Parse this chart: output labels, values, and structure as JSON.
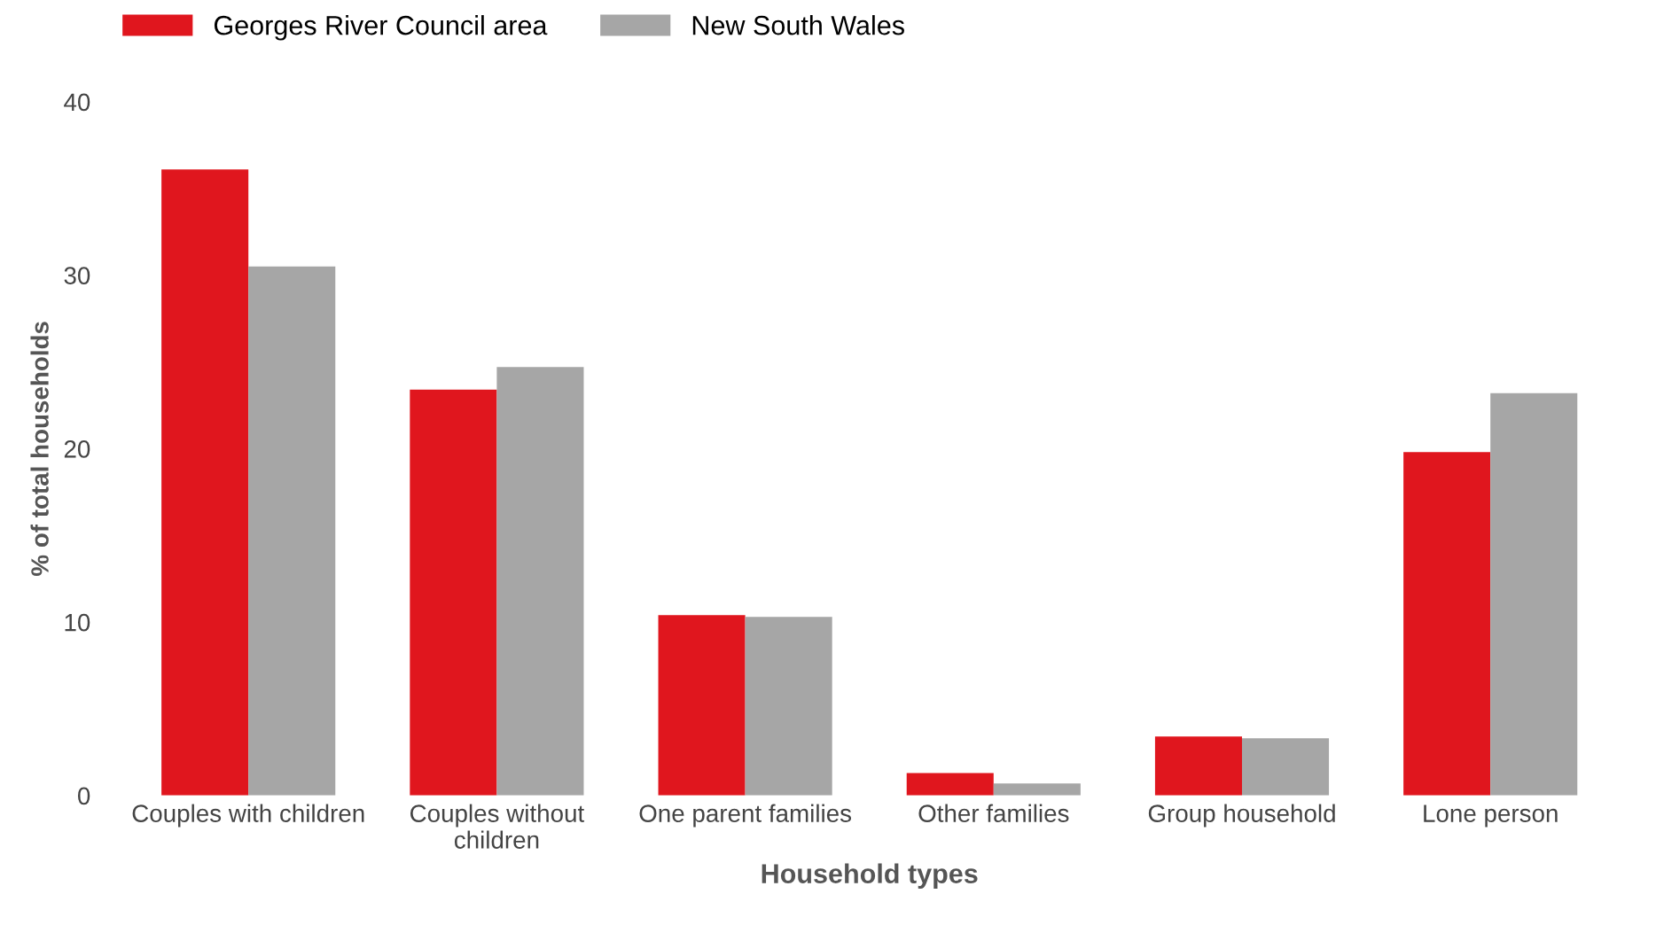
{
  "chart_data": {
    "type": "bar",
    "xlabel": "Household types",
    "ylabel": "% of total households",
    "categories": [
      "Couples with children",
      "Couples without\nchildren",
      "One parent families",
      "Other families",
      "Group household",
      "Lone person"
    ],
    "series": [
      {
        "name": "Georges River Council area",
        "color": "#e0161e",
        "values": [
          36.1,
          23.4,
          10.4,
          1.3,
          3.4,
          19.8
        ]
      },
      {
        "name": "New South Wales",
        "color": "#a6a6a6",
        "values": [
          30.5,
          24.7,
          10.3,
          0.7,
          3.3,
          23.2
        ]
      }
    ],
    "ylim": [
      0,
      40
    ],
    "yticks": [
      0,
      10,
      20,
      30,
      40
    ],
    "grid": false,
    "legend": "top left"
  }
}
